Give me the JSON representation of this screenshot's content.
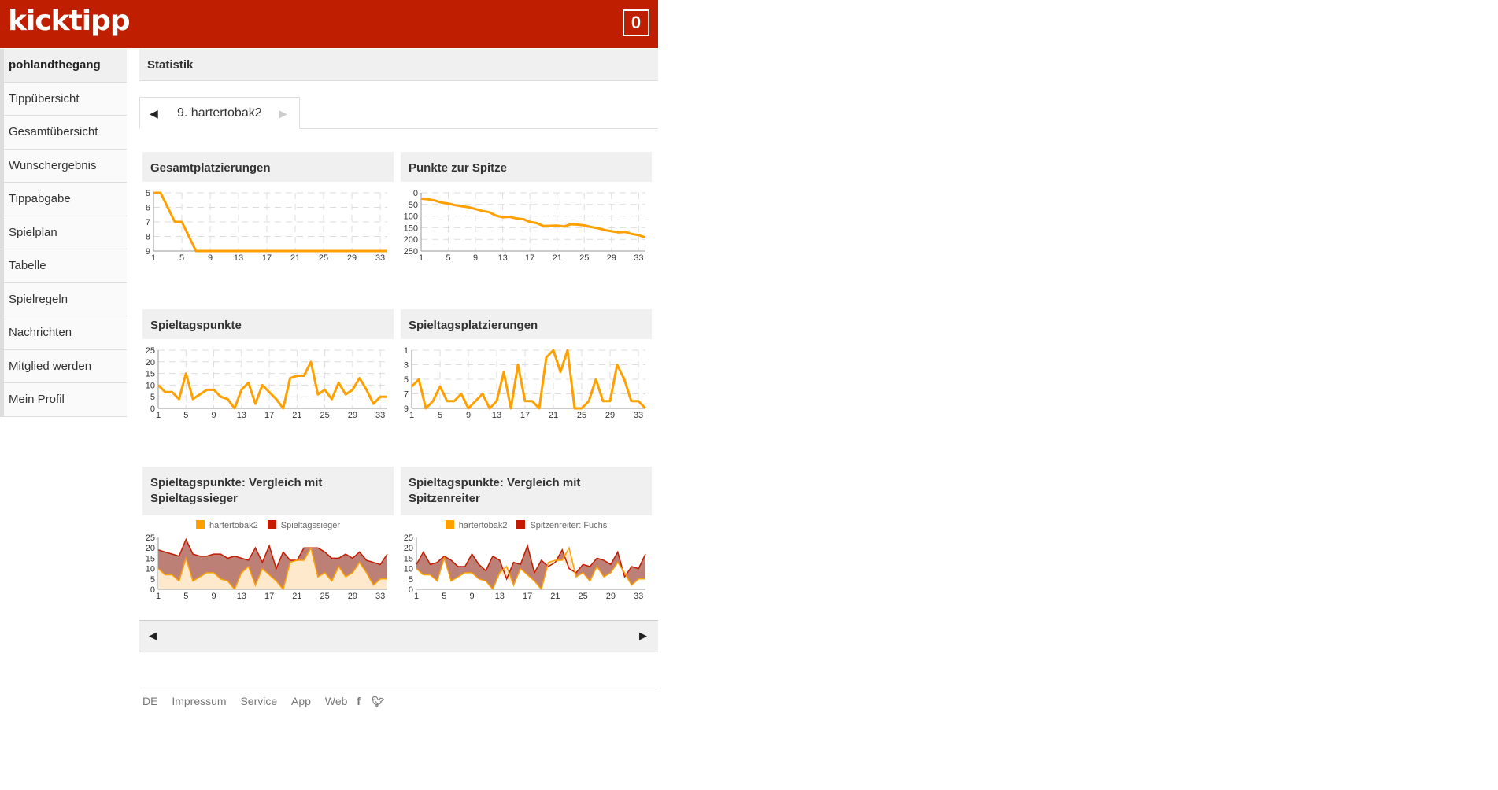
{
  "header": {
    "logo": "kicktipp",
    "badge_count": "0",
    "brand_color": "#bf1e00"
  },
  "sidebar": {
    "items": [
      {
        "label": "pohlandthegang",
        "active": true
      },
      {
        "label": "Tippübersicht"
      },
      {
        "label": "Gesamtübersicht"
      },
      {
        "label": "Wunschergebnis"
      },
      {
        "label": "Tippabgabe"
      },
      {
        "label": "Spielplan"
      },
      {
        "label": "Tabelle"
      },
      {
        "label": "Spielregeln"
      },
      {
        "label": "Nachrichten"
      },
      {
        "label": "Mitglied werden"
      },
      {
        "label": "Mein Profil"
      }
    ]
  },
  "main": {
    "title": "Statistik",
    "tab": {
      "prev_icon": "triangle-left",
      "label": "9. hartertobak2",
      "next_icon": "triangle-right"
    }
  },
  "colors": {
    "player": "#ffa000",
    "compare": "#c41a00",
    "fill_player": "#fee9cc",
    "fill_between": "#bd8076"
  },
  "chart_data": [
    {
      "title": "Gesamtplatzierungen",
      "type": "line",
      "xlim": [
        1,
        34
      ],
      "x_ticks": [
        1,
        5,
        9,
        13,
        17,
        21,
        25,
        29,
        33
      ],
      "ylim": [
        5,
        9
      ],
      "y_ticks": [
        5,
        6,
        7,
        8,
        9
      ],
      "y_inverted": true,
      "grid": true,
      "series": [
        {
          "values": [
            5,
            5,
            6,
            7,
            7,
            8,
            9,
            9,
            9,
            9,
            9,
            9,
            9,
            9,
            9,
            9,
            9,
            9,
            9,
            9,
            9,
            9,
            9,
            9,
            9,
            9,
            9,
            9,
            9,
            9,
            9,
            9,
            9,
            9
          ]
        }
      ]
    },
    {
      "title": "Punkte zur Spitze",
      "type": "line",
      "xlim": [
        1,
        34
      ],
      "x_ticks": [
        1,
        5,
        9,
        13,
        17,
        21,
        25,
        29,
        33
      ],
      "ylim": [
        0,
        250
      ],
      "y_ticks": [
        0,
        50,
        100,
        150,
        200,
        250
      ],
      "y_inverted": true,
      "grid": true,
      "series": [
        {
          "values": [
            25,
            28,
            33,
            42,
            46,
            53,
            58,
            62,
            70,
            78,
            83,
            98,
            105,
            103,
            110,
            113,
            125,
            130,
            143,
            142,
            141,
            145,
            135,
            137,
            140,
            147,
            152,
            160,
            165,
            170,
            168,
            177,
            182,
            192
          ]
        }
      ]
    },
    {
      "title": "Spieltagspunkte",
      "type": "line",
      "xlim": [
        1,
        34
      ],
      "x_ticks": [
        1,
        5,
        9,
        13,
        17,
        21,
        25,
        29,
        33
      ],
      "ylim": [
        0,
        25
      ],
      "y_ticks": [
        0,
        5,
        10,
        15,
        20,
        25
      ],
      "y_inverted": false,
      "grid": true,
      "series": [
        {
          "values": [
            10,
            7,
            7,
            4,
            15,
            4,
            6,
            8,
            8,
            5,
            4,
            0,
            8,
            11,
            2,
            10,
            7,
            4,
            0,
            13,
            14,
            14,
            20,
            6,
            8,
            4,
            11,
            6,
            8,
            13,
            8,
            2,
            5,
            5
          ]
        }
      ]
    },
    {
      "title": "Spieltagsplatzierungen",
      "type": "line",
      "xlim": [
        1,
        34
      ],
      "x_ticks": [
        1,
        5,
        9,
        13,
        17,
        21,
        25,
        29,
        33
      ],
      "ylim": [
        1,
        9
      ],
      "y_ticks": [
        1,
        3,
        5,
        7,
        9
      ],
      "y_inverted": true,
      "grid": true,
      "series": [
        {
          "values": [
            6,
            5,
            9,
            8,
            6,
            8,
            8,
            7,
            9,
            8,
            7,
            9,
            8,
            4,
            9,
            3,
            8,
            8,
            9,
            2,
            1,
            4,
            1,
            9,
            9,
            8,
            5,
            8,
            8,
            3,
            5,
            8,
            8,
            9
          ]
        }
      ]
    },
    {
      "title": "Spieltagspunkte: Vergleich mit Spieltagssieger",
      "type": "area",
      "xlim": [
        1,
        34
      ],
      "x_ticks": [
        1,
        5,
        9,
        13,
        17,
        21,
        25,
        29,
        33
      ],
      "ylim": [
        0,
        25
      ],
      "y_ticks": [
        0,
        5,
        10,
        15,
        20,
        25
      ],
      "grid": false,
      "legend_position": "top",
      "fill_player_area": true,
      "series": [
        {
          "name": "hartertobak2",
          "values": [
            10,
            7,
            7,
            4,
            15,
            4,
            6,
            8,
            8,
            5,
            4,
            0,
            8,
            11,
            2,
            10,
            7,
            4,
            0,
            13,
            14,
            14,
            20,
            6,
            8,
            4,
            11,
            6,
            8,
            13,
            8,
            2,
            5,
            5
          ]
        },
        {
          "name": "Spieltagssieger",
          "values": [
            19,
            18,
            17,
            16,
            24,
            17,
            16,
            16,
            17,
            17,
            15,
            16,
            15,
            14,
            20,
            13,
            21,
            10,
            18,
            14,
            14,
            20,
            20,
            20,
            18,
            15,
            15,
            17,
            15,
            18,
            14,
            13,
            12,
            17
          ]
        }
      ]
    },
    {
      "title": "Spieltagspunkte: Vergleich mit Spitzenreiter",
      "type": "area",
      "xlim": [
        1,
        34
      ],
      "x_ticks": [
        1,
        5,
        9,
        13,
        17,
        21,
        25,
        29,
        33
      ],
      "ylim": [
        0,
        25
      ],
      "y_ticks": [
        0,
        5,
        10,
        15,
        20,
        25
      ],
      "grid": false,
      "legend_position": "top",
      "fill_player_area": false,
      "series": [
        {
          "name": "hartertobak2",
          "values": [
            10,
            7,
            7,
            4,
            15,
            4,
            6,
            8,
            8,
            5,
            4,
            0,
            8,
            11,
            2,
            10,
            7,
            4,
            0,
            13,
            14,
            14,
            20,
            6,
            8,
            4,
            11,
            6,
            8,
            13,
            8,
            2,
            5,
            5
          ]
        },
        {
          "name": "Spitzenreiter: Fuchs",
          "values": [
            12,
            18,
            12,
            13,
            16,
            14,
            11,
            11,
            17,
            12,
            9,
            16,
            14,
            5,
            13,
            12,
            21,
            8,
            14,
            11,
            13,
            19,
            10,
            8,
            12,
            11,
            15,
            14,
            12,
            18,
            6,
            11,
            10,
            17
          ]
        }
      ]
    }
  ],
  "bottom_nav": {
    "prev_icon": "triangle-left",
    "next_icon": "triangle-right"
  },
  "footer": {
    "links": [
      "DE",
      "Impressum",
      "Service",
      "App",
      "Web"
    ],
    "icons": [
      "facebook",
      "twitter"
    ]
  }
}
